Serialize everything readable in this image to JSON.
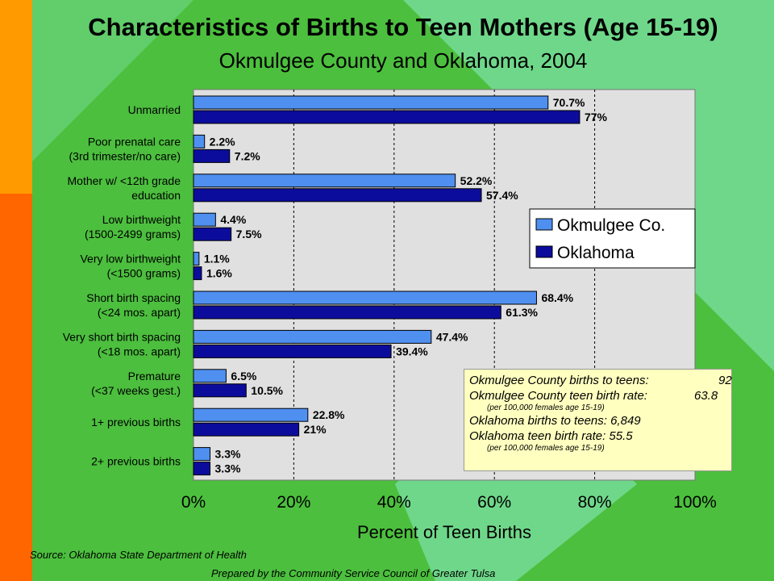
{
  "title": "Characteristics of Births to Teen Mothers (Age 15-19)",
  "subtitle": "Okmulgee County and Oklahoma, 2004",
  "colors": {
    "okmulgee": "#4f8ff0",
    "oklahoma": "#0c0c9c",
    "plot_bg": "#e0e0e0",
    "note_bg": "#ffffc0"
  },
  "chart_data": {
    "type": "bar",
    "orientation": "horizontal",
    "categories": [
      [
        "Unmarried"
      ],
      [
        "Poor prenatal care",
        "(3rd trimester/no care)"
      ],
      [
        "Mother w/ <12th grade",
        "education"
      ],
      [
        "Low birthweight",
        "(1500-2499 grams)"
      ],
      [
        "Very low birthweight",
        "(<1500 grams)"
      ],
      [
        "Short birth spacing",
        "(<24 mos. apart)"
      ],
      [
        "Very short birth spacing",
        "(<18 mos. apart)"
      ],
      [
        "Premature",
        "(<37 weeks gest.)"
      ],
      [
        "1+ previous births"
      ],
      [
        "2+ previous births"
      ]
    ],
    "series": [
      {
        "name": "Okmulgee Co.",
        "values": [
          70.7,
          2.2,
          52.2,
          4.4,
          1.1,
          68.4,
          47.4,
          6.5,
          22.8,
          3.3
        ],
        "labels": [
          "70.7%",
          "2.2%",
          "52.2%",
          "4.4%",
          "1.1%",
          "68.4%",
          "47.4%",
          "6.5%",
          "22.8%",
          "3.3%"
        ]
      },
      {
        "name": "Oklahoma",
        "values": [
          77,
          7.2,
          57.4,
          7.5,
          1.6,
          61.3,
          39.4,
          10.5,
          21,
          3.3
        ],
        "labels": [
          "77%",
          "7.2%",
          "57.4%",
          "7.5%",
          "1.6%",
          "61.3%",
          "39.4%",
          "10.5%",
          "21%",
          "3.3%"
        ]
      }
    ],
    "xlabel": "Percent of Teen Births",
    "xlim": [
      0,
      100
    ],
    "xticks": [
      0,
      20,
      40,
      60,
      80,
      100
    ],
    "xtick_labels": [
      "0%",
      "20%",
      "40%",
      "60%",
      "80%",
      "100%"
    ],
    "grid": "vertical dashed",
    "legend_position": "right-middle"
  },
  "note": {
    "line1": "Okmulgee County births to teens:",
    "line1_value": "92",
    "line2": "Okmulgee County teen birth rate:",
    "line2_value": "63.8",
    "line3": "(per 100,000 females age 15-19)",
    "line4": "Oklahoma births to teens: 6,849",
    "line5": "Oklahoma teen birth rate: 55.5",
    "line6": "(per 100,000 females age 15-19)"
  },
  "source": "Source:  Oklahoma State Department of Health",
  "prepared_by": "Prepared by the Community Service Council of Greater Tulsa"
}
